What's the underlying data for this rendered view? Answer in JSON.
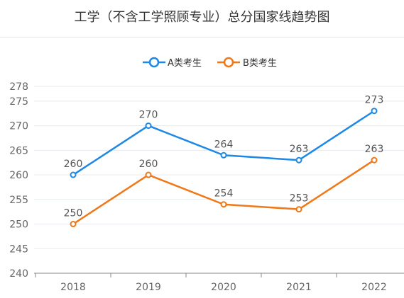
{
  "title": "工学（不含工学照顾专业）总分国家线趋势图",
  "colors": {
    "series_a": "#1e88e5",
    "series_b": "#f07818",
    "grid": "#e6eaf0",
    "axis": "#888888"
  },
  "chart_data": {
    "type": "line",
    "title": "工学（不含工学照顾专业）总分国家线趋势图",
    "xlabel": "",
    "ylabel": "",
    "categories": [
      "2018",
      "2019",
      "2020",
      "2021",
      "2022"
    ],
    "y_ticks": [
      240,
      245,
      250,
      255,
      260,
      265,
      270,
      275,
      278
    ],
    "ylim": [
      240,
      278
    ],
    "grid": true,
    "legend_position": "top-center",
    "series": [
      {
        "name": "A类考生",
        "values": [
          260,
          270,
          264,
          263,
          273
        ]
      },
      {
        "name": "B类考生",
        "values": [
          250,
          260,
          254,
          253,
          263
        ]
      }
    ]
  }
}
